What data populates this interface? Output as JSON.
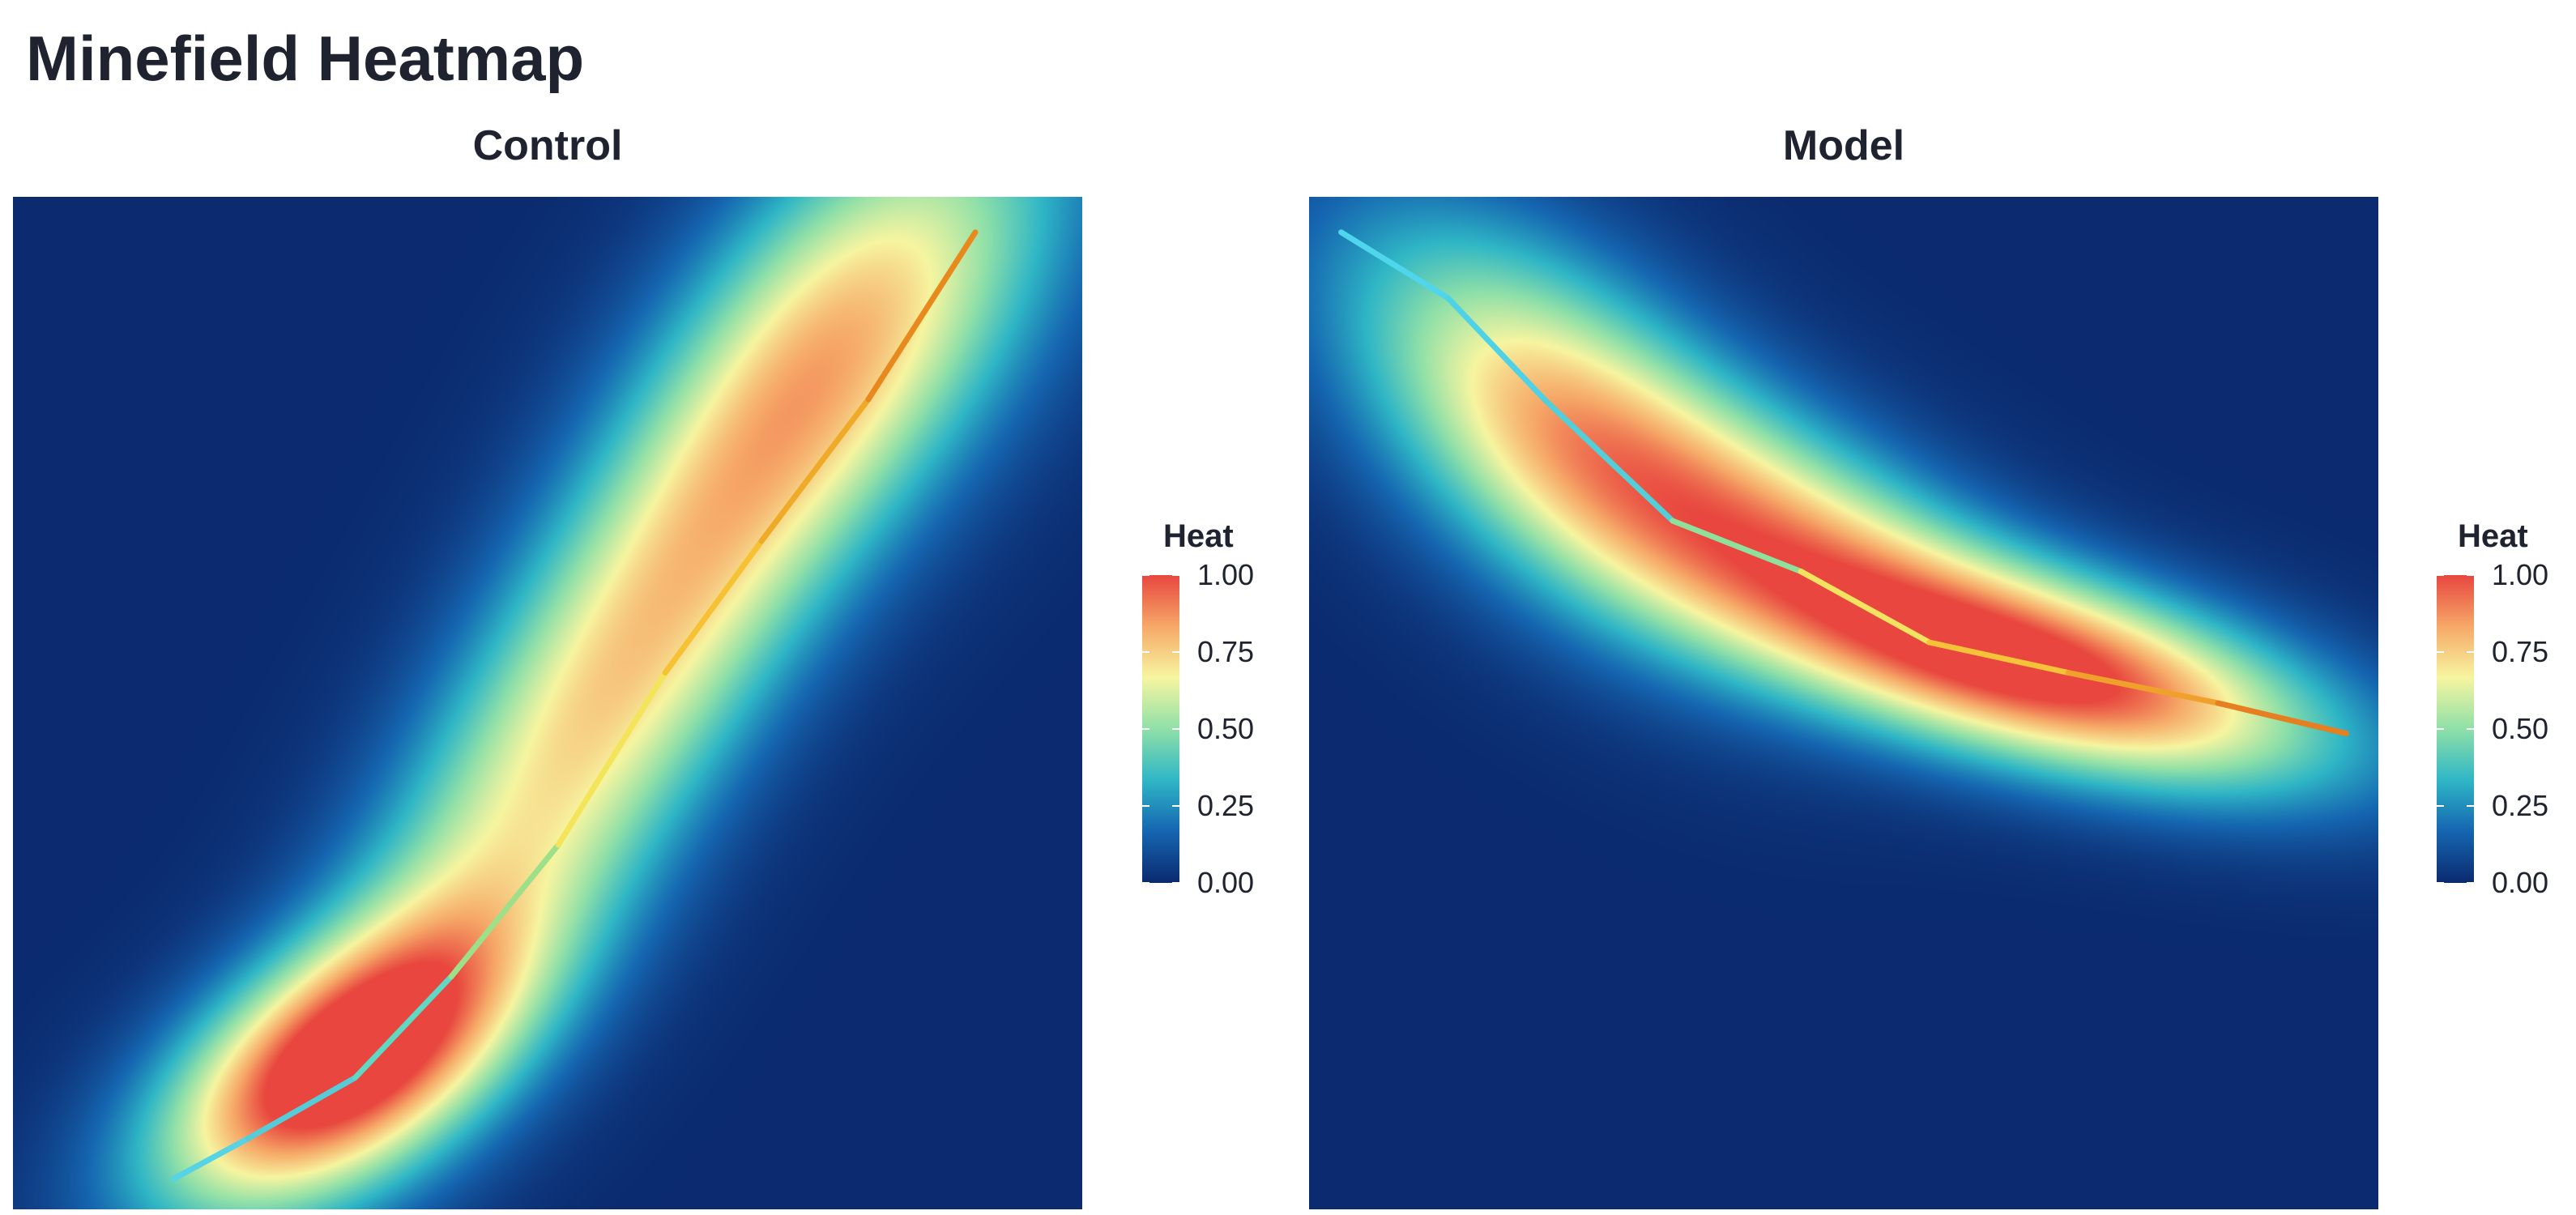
{
  "title": "Minefield Heatmap",
  "legend": {
    "title": "Heat",
    "ticks": [
      "0.00",
      "0.25",
      "0.50",
      "0.75",
      "1.00"
    ],
    "tick_values": [
      0,
      0.25,
      0.5,
      0.75,
      1.0
    ],
    "colors": [
      "#0b2a6f",
      "#1565b0",
      "#2fb6c6",
      "#8fe0a8",
      "#f6f5a0",
      "#f6a868",
      "#e8463e"
    ]
  },
  "chart_data": [
    {
      "type": "heatmap",
      "title": "Control",
      "xlim": [
        0,
        1
      ],
      "ylim": [
        0,
        1
      ],
      "grid": false,
      "legend_position": "right",
      "heat_field": {
        "blobs": [
          {
            "cx": 0.3,
            "cy": 0.14,
            "sx": 0.12,
            "sy": 0.1,
            "rho": 0.55,
            "amp": 1.0
          },
          {
            "cx": 0.55,
            "cy": 0.5,
            "sx": 0.17,
            "sy": 0.26,
            "rho": 0.8,
            "amp": 0.72
          },
          {
            "cx": 0.8,
            "cy": 0.88,
            "sx": 0.14,
            "sy": 0.17,
            "rho": 0.55,
            "amp": 0.58
          }
        ]
      },
      "path": {
        "x": [
          0.15,
          0.22,
          0.32,
          0.41,
          0.51,
          0.61,
          0.7,
          0.8,
          0.9
        ],
        "y": [
          0.03,
          0.07,
          0.13,
          0.23,
          0.36,
          0.53,
          0.66,
          0.8,
          0.965
        ],
        "colors": [
          "#4fd8ea",
          "#56d3e4",
          "#56ccd8",
          "#5fd8c4",
          "#9ee08a",
          "#f3e45a",
          "#f6c233",
          "#efaa28",
          "#e8891d"
        ]
      }
    },
    {
      "type": "heatmap",
      "title": "Model",
      "xlim": [
        0,
        1
      ],
      "ylim": [
        0,
        1
      ],
      "grid": false,
      "legend_position": "right",
      "heat_field": {
        "blobs": [
          {
            "cx": 0.7,
            "cy": 0.53,
            "sx": 0.18,
            "sy": 0.08,
            "rho": -0.55,
            "amp": 1.0
          },
          {
            "cx": 0.23,
            "cy": 0.78,
            "sx": 0.14,
            "sy": 0.14,
            "rho": -0.55,
            "amp": 0.72
          },
          {
            "cx": 0.45,
            "cy": 0.66,
            "sx": 0.14,
            "sy": 0.1,
            "rho": -0.5,
            "amp": 0.55
          }
        ]
      },
      "path": {
        "x": [
          0.03,
          0.13,
          0.22,
          0.34,
          0.46,
          0.58,
          0.71,
          0.85,
          0.97
        ],
        "y": [
          0.965,
          0.9,
          0.8,
          0.68,
          0.63,
          0.56,
          0.53,
          0.5,
          0.47
        ],
        "colors": [
          "#56dcf0",
          "#4fd6ec",
          "#4fd2e6",
          "#52cfd8",
          "#8fe09a",
          "#f2e460",
          "#f6c23a",
          "#f0a12c",
          "#e67e22"
        ]
      }
    }
  ]
}
